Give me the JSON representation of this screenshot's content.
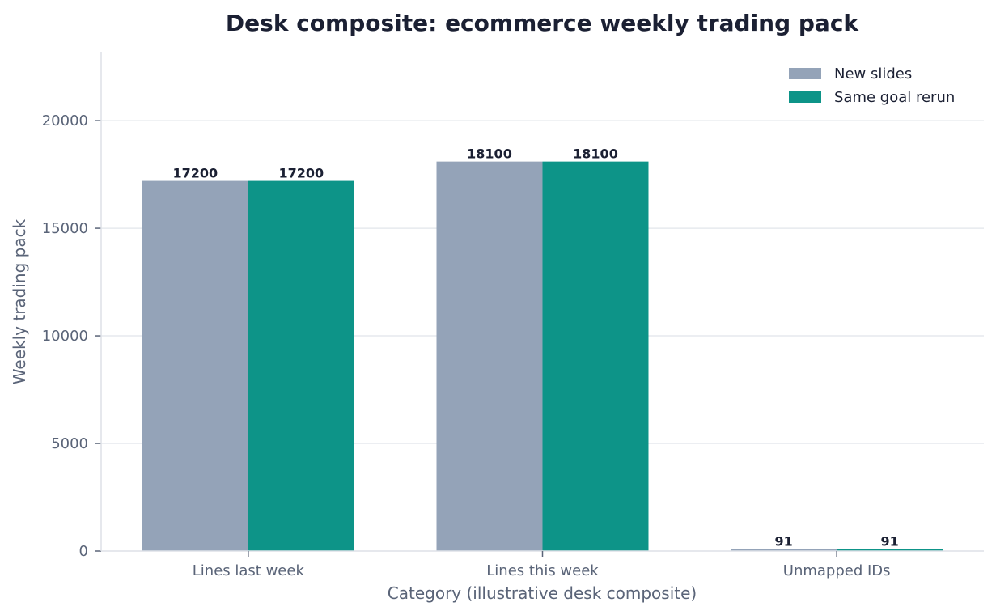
{
  "chart_data": {
    "type": "bar",
    "title": "Desk composite: ecommerce weekly trading pack",
    "xlabel": "Category (illustrative desk composite)",
    "ylabel": "Weekly trading pack",
    "categories": [
      "Lines last week",
      "Lines this week",
      "Unmapped IDs"
    ],
    "series": [
      {
        "name": "New slides",
        "values": [
          17200,
          18100,
          91
        ],
        "color": "#94a3b8"
      },
      {
        "name": "Same goal rerun",
        "values": [
          17200,
          18100,
          91
        ],
        "color": "#0d9488"
      }
    ],
    "ylim": [
      0,
      23200
    ],
    "yticks": [
      0,
      5000,
      10000,
      15000,
      20000
    ],
    "grid": true,
    "legend_position": "top-right"
  }
}
